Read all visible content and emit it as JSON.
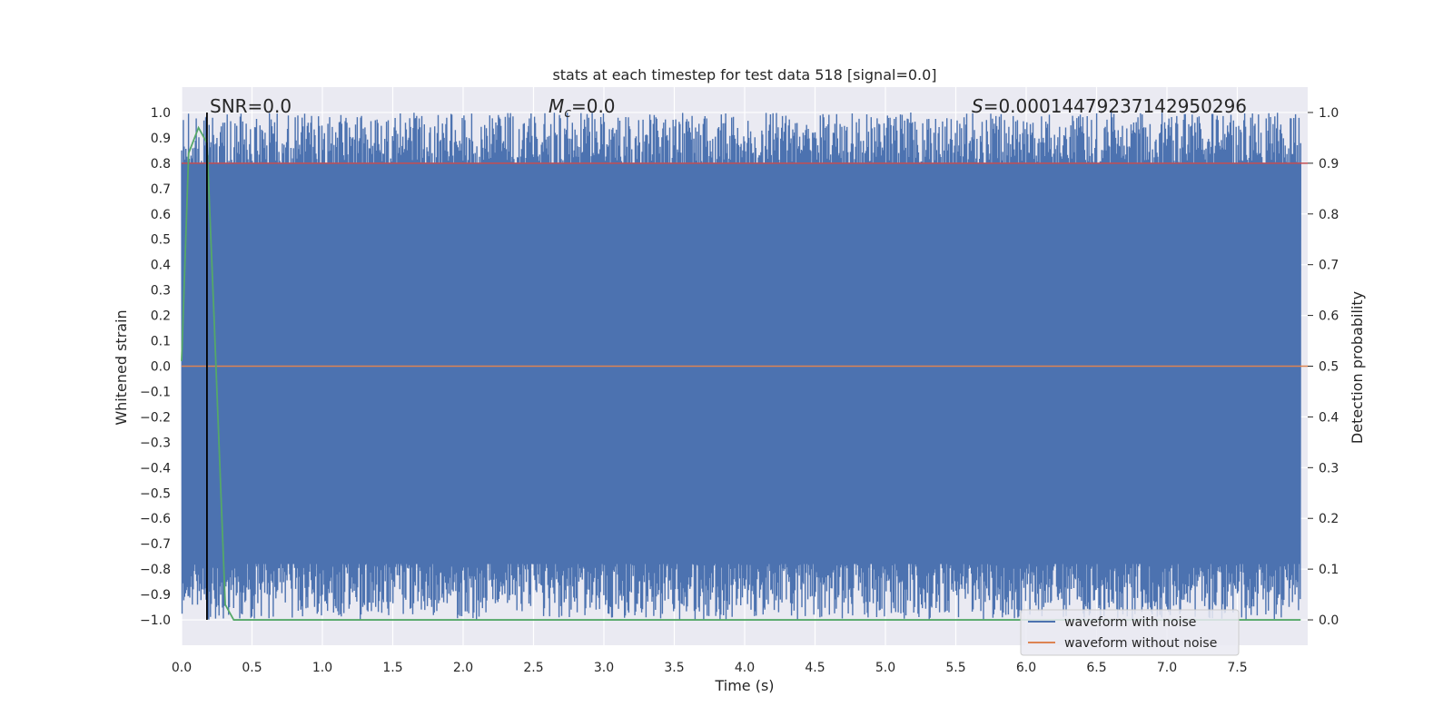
{
  "chart_data": {
    "type": "line",
    "title": "stats at each timestep for test data 518 [signal=0.0]",
    "xlabel": "Time (s)",
    "ylabel_left": "Whitened strain",
    "ylabel_right": "Detection probability",
    "xlim": [
      0.0,
      8.0
    ],
    "ylim_left": [
      -1.1,
      1.1
    ],
    "ylim_right": [
      -0.05,
      1.05
    ],
    "x_ticks": [
      "0.0",
      "0.5",
      "1.0",
      "1.5",
      "2.0",
      "2.5",
      "3.0",
      "3.5",
      "4.0",
      "4.5",
      "5.0",
      "5.5",
      "6.0",
      "6.5",
      "7.0",
      "7.5"
    ],
    "y_ticks_left": [
      "1.0",
      "0.9",
      "0.8",
      "0.7",
      "0.6",
      "0.5",
      "0.4",
      "0.3",
      "0.2",
      "0.1",
      "0.0",
      "−0.1",
      "−0.2",
      "−0.3",
      "−0.4",
      "−0.5",
      "−0.6",
      "−0.7",
      "−0.8",
      "−0.9",
      "−1.0"
    ],
    "y_ticks_right": [
      "1.0",
      "0.9",
      "0.8",
      "0.7",
      "0.6",
      "0.5",
      "0.4",
      "0.3",
      "0.2",
      "0.1",
      "0.0"
    ],
    "annotations": {
      "snr": "SNR=0.0",
      "mc_symbol": "M",
      "mc_sub": "c",
      "mc_value": "=0.0",
      "s_symbol": "S",
      "s_value": "=0.00014479237142950296"
    },
    "legend": {
      "position": "lower right",
      "entries": [
        {
          "label": "waveform with noise",
          "color": "#4c72b0"
        },
        {
          "label": "waveform without noise",
          "color": "#dd8452"
        }
      ]
    },
    "series": [
      {
        "name": "waveform with noise",
        "axis": "left",
        "color": "#4c72b0",
        "description": "dense whitened noise oscillating roughly between -1.0 and 1.0 across 0-8 s"
      },
      {
        "name": "waveform without noise",
        "axis": "left",
        "color": "#dd8452",
        "x": [
          0.0,
          8.0
        ],
        "y": [
          0.0,
          0.0
        ]
      },
      {
        "axis": "right",
        "color": "#55a868",
        "x": [
          0.0,
          0.05,
          0.12,
          0.18,
          0.23,
          0.31,
          0.37,
          7.95
        ],
        "y": [
          0.51,
          0.92,
          0.97,
          0.94,
          0.6,
          0.03,
          0.0,
          0.0
        ]
      }
    ],
    "threshold_line": {
      "axis": "right",
      "value": 0.9,
      "color": "#c44e52"
    },
    "marker_line": {
      "x": 0.18,
      "color": "#000000"
    },
    "grid": true,
    "background": "#eaeaf2"
  }
}
